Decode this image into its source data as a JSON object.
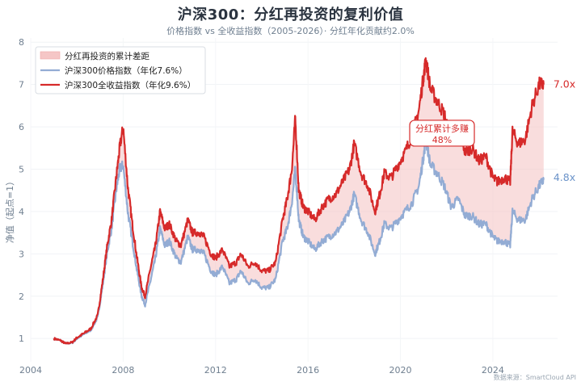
{
  "title": "沪深300：分红再投资的复利价值",
  "subtitle": "价格指数 vs 全收益指数（2005-2026）· 分红年化贡献约2.0%",
  "source": "数据来源：SmartCloud API",
  "chart_data": {
    "type": "line",
    "ylabel": "净值（起点=1）",
    "xlim": [
      2004,
      2026.8
    ],
    "ylim": [
      0.45,
      8.1
    ],
    "xticks": [
      "2004",
      "2008",
      "2012",
      "2016",
      "2020",
      "2024"
    ],
    "xtick_values": [
      2004,
      2008,
      2012,
      2016,
      2020,
      2024
    ],
    "yticks": [
      "1",
      "2",
      "3",
      "4",
      "5",
      "6",
      "7",
      "8"
    ],
    "ytick_values": [
      1,
      2,
      3,
      4,
      5,
      6,
      7,
      8
    ],
    "grid": true,
    "legend_position": "top-left",
    "legend": [
      {
        "label": "分红再投资的累计差距",
        "kind": "area",
        "color": "#f5c6c6"
      },
      {
        "label": "沪深300价格指数（年化7.6%）",
        "kind": "line",
        "color": "#93acd4"
      },
      {
        "label": "沪深300全收益指数（年化9.6%）",
        "kind": "line",
        "color": "#d62a2a"
      }
    ],
    "series": [
      {
        "name": "沪深300价格指数（年化7.6%）",
        "color": "#93acd4",
        "x": [
          2005.0,
          2005.3,
          2005.5,
          2005.8,
          2006.0,
          2006.3,
          2006.6,
          2006.9,
          2007.1,
          2007.3,
          2007.5,
          2007.7,
          2007.85,
          2008.0,
          2008.2,
          2008.4,
          2008.6,
          2008.8,
          2008.95,
          2009.2,
          2009.4,
          2009.6,
          2009.8,
          2010.0,
          2010.3,
          2010.5,
          2010.8,
          2011.0,
          2011.3,
          2011.5,
          2011.8,
          2012.0,
          2012.3,
          2012.6,
          2012.9,
          2013.1,
          2013.4,
          2013.7,
          2014.0,
          2014.3,
          2014.6,
          2014.9,
          2015.1,
          2015.3,
          2015.45,
          2015.6,
          2015.8,
          2016.0,
          2016.3,
          2016.6,
          2016.9,
          2017.2,
          2017.5,
          2017.8,
          2018.0,
          2018.3,
          2018.6,
          2018.9,
          2019.1,
          2019.3,
          2019.6,
          2019.9,
          2020.2,
          2020.5,
          2020.8,
          2021.0,
          2021.1,
          2021.3,
          2021.6,
          2021.9,
          2022.2,
          2022.5,
          2022.8,
          2023.1,
          2023.4,
          2023.7,
          2024.0,
          2024.2,
          2024.5,
          2024.75,
          2024.85,
          2025.1,
          2025.4,
          2025.7,
          2026.0,
          2026.2
        ],
        "values": [
          1.0,
          0.95,
          0.88,
          0.9,
          1.0,
          1.1,
          1.2,
          1.5,
          2.2,
          3.0,
          3.6,
          4.5,
          5.0,
          5.1,
          4.0,
          3.3,
          2.6,
          2.0,
          1.8,
          2.4,
          2.9,
          3.6,
          3.2,
          3.3,
          2.9,
          2.8,
          3.4,
          3.1,
          3.1,
          3.0,
          2.6,
          2.5,
          2.7,
          2.3,
          2.4,
          2.6,
          2.3,
          2.4,
          2.2,
          2.2,
          2.4,
          3.3,
          3.6,
          4.2,
          5.0,
          3.8,
          3.4,
          3.3,
          3.1,
          3.3,
          3.4,
          3.5,
          3.7,
          4.0,
          4.4,
          3.8,
          3.5,
          3.0,
          3.3,
          3.7,
          3.6,
          3.8,
          4.0,
          4.2,
          4.6,
          5.3,
          5.7,
          5.1,
          4.9,
          4.6,
          4.1,
          4.3,
          3.9,
          3.9,
          3.7,
          3.7,
          3.4,
          3.3,
          3.3,
          3.2,
          4.0,
          3.8,
          3.8,
          4.3,
          4.6,
          4.75
        ]
      },
      {
        "name": "沪深300全收益指数（年化9.6%）",
        "color": "#d62a2a",
        "x": [
          2005.0,
          2005.3,
          2005.5,
          2005.8,
          2006.0,
          2006.3,
          2006.6,
          2006.9,
          2007.1,
          2007.3,
          2007.5,
          2007.7,
          2007.85,
          2008.0,
          2008.2,
          2008.4,
          2008.6,
          2008.8,
          2008.95,
          2009.2,
          2009.4,
          2009.6,
          2009.8,
          2010.0,
          2010.3,
          2010.5,
          2010.8,
          2011.0,
          2011.3,
          2011.5,
          2011.8,
          2012.0,
          2012.3,
          2012.6,
          2012.9,
          2013.1,
          2013.4,
          2013.7,
          2014.0,
          2014.3,
          2014.6,
          2014.9,
          2015.1,
          2015.3,
          2015.45,
          2015.6,
          2015.8,
          2016.0,
          2016.3,
          2016.6,
          2016.9,
          2017.2,
          2017.5,
          2017.8,
          2018.0,
          2018.3,
          2018.6,
          2018.9,
          2019.1,
          2019.3,
          2019.6,
          2019.9,
          2020.2,
          2020.5,
          2020.8,
          2021.0,
          2021.1,
          2021.3,
          2021.6,
          2021.9,
          2022.2,
          2022.5,
          2022.8,
          2023.1,
          2023.4,
          2023.7,
          2024.0,
          2024.2,
          2024.5,
          2024.75,
          2024.85,
          2025.1,
          2025.4,
          2025.7,
          2026.0,
          2026.2
        ],
        "values": [
          1.0,
          0.95,
          0.88,
          0.91,
          1.02,
          1.12,
          1.23,
          1.55,
          2.3,
          3.15,
          3.8,
          4.8,
          5.5,
          6.0,
          4.6,
          3.7,
          2.9,
          2.2,
          2.0,
          2.7,
          3.2,
          4.0,
          3.6,
          3.7,
          3.3,
          3.2,
          3.8,
          3.5,
          3.5,
          3.4,
          3.0,
          2.9,
          3.1,
          2.7,
          2.8,
          3.0,
          2.7,
          2.8,
          2.6,
          2.6,
          2.8,
          3.8,
          4.3,
          5.0,
          6.2,
          4.5,
          4.1,
          4.0,
          3.8,
          4.1,
          4.3,
          4.4,
          4.7,
          5.0,
          5.6,
          4.9,
          4.6,
          4.0,
          4.4,
          4.9,
          4.8,
          5.1,
          5.4,
          5.8,
          6.4,
          7.2,
          7.6,
          6.9,
          6.6,
          6.3,
          5.7,
          6.0,
          5.4,
          5.5,
          5.2,
          5.3,
          4.8,
          4.7,
          4.8,
          4.7,
          5.9,
          5.6,
          5.7,
          6.5,
          7.0,
          7.0
        ]
      }
    ],
    "end_labels": [
      {
        "series": 1,
        "text": "7.0x",
        "value": 7.0,
        "color": "#d62a2a"
      },
      {
        "series": 0,
        "text": "4.8x",
        "value": 4.8,
        "color": "#6b93c9"
      }
    ],
    "annotation": {
      "line1": "分红累计多赚",
      "line2": "48%",
      "x": 2021.8,
      "y": 5.85,
      "color": "#d62a2a"
    }
  }
}
